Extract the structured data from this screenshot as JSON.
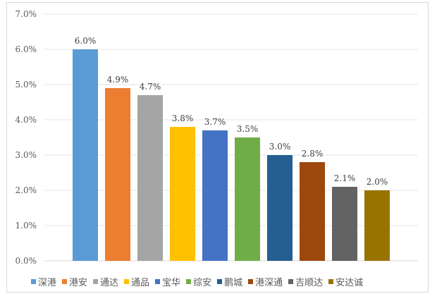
{
  "chart_data": {
    "type": "bar",
    "categories": [
      "深港",
      "港安",
      "通达",
      "通品",
      "宝华",
      "综安",
      "鹏城",
      "港深通",
      "吉顺达",
      "安达诚"
    ],
    "values": [
      6.0,
      4.9,
      4.7,
      3.8,
      3.7,
      3.5,
      3.0,
      2.8,
      2.1,
      2.0
    ],
    "data_labels": [
      "6.0%",
      "4.9%",
      "4.7%",
      "3.8%",
      "3.7%",
      "3.5%",
      "3.0%",
      "2.8%",
      "2.1%",
      "2.0%"
    ],
    "colors": [
      "#5b9bd5",
      "#ed7d31",
      "#a5a5a5",
      "#ffc000",
      "#4472c4",
      "#70ad47",
      "#255e91",
      "#9e480e",
      "#636363",
      "#997300"
    ],
    "ylim": [
      0,
      7
    ],
    "yticks": [
      "0.0%",
      "1.0%",
      "2.0%",
      "3.0%",
      "4.0%",
      "5.0%",
      "6.0%",
      "7.0%"
    ],
    "grid": true,
    "legend_position": "bottom",
    "title": "",
    "xlabel": "",
    "ylabel": ""
  }
}
